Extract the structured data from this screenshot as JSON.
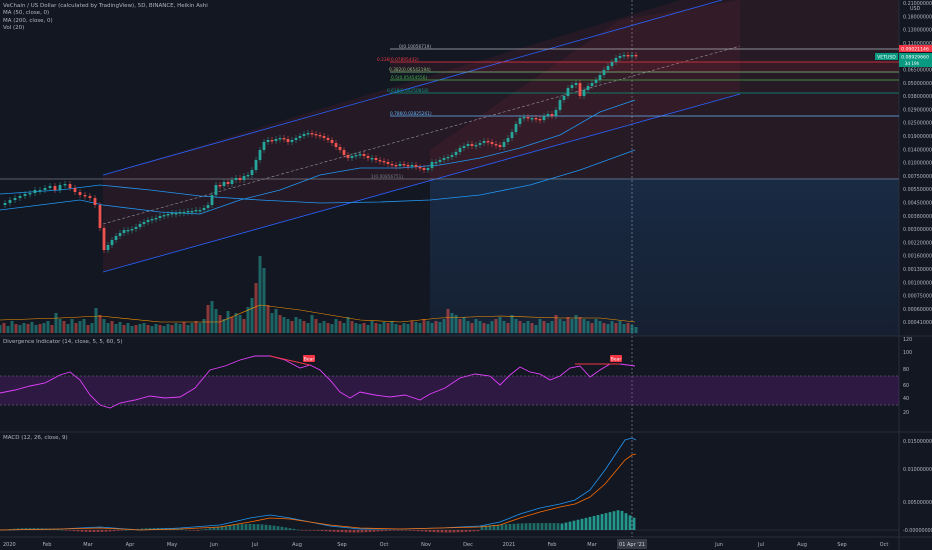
{
  "header": {
    "title": "VeChain / US Dollar (calculated by TradingView), 5D, BINANCE, Heikin Ashi",
    "indicators": [
      "MA (50, close, 0)",
      "MA (200, close, 0)",
      "Vol (20)"
    ]
  },
  "price_axis": {
    "currency": "USD",
    "labels": [
      "0.21000000",
      "0.18000000",
      "0.13000000",
      "0.11000000",
      "0.08500000",
      "0.06500000",
      "0.05000000",
      "0.03800000",
      "0.02900000",
      "0.02500000",
      "0.01900000",
      "0.01400000",
      "0.01000000",
      "0.00750000",
      "0.00550000",
      "0.00450000",
      "0.00380000",
      "0.00300000",
      "0.00220000",
      "0.00160000",
      "0.00130000",
      "0.00100000",
      "0.00075000",
      "0.00060000",
      "0.00041000"
    ],
    "tags": {
      "top_value": "0.09021146",
      "symbol": "VETUSD",
      "last_value": "0.08929660",
      "countdown": "3d 19h"
    }
  },
  "fib_levels": [
    {
      "label": "0(0.10056719)",
      "color": "#b2b5be"
    },
    {
      "label": "0.236(0.07895442)",
      "color": "#f23645"
    },
    {
      "label": "0.382(0.06542194)",
      "color": "#81c784"
    },
    {
      "label": "0.5(0.05454556)",
      "color": "#4caf50"
    },
    {
      "label": "0.618(0.04250818)",
      "color": "#089981"
    },
    {
      "label": "0.786(0.02825261)",
      "color": "#64b5f6"
    },
    {
      "label": "1(0.00856751)",
      "color": "#787b86"
    }
  ],
  "divergence": {
    "title": "Divergence Indicator (14, close, 5, 5, 60, 5)",
    "axis": [
      "120",
      "100",
      "80",
      "60",
      "40",
      "20"
    ],
    "badges": [
      "Bear",
      "Bear"
    ]
  },
  "macd": {
    "title": "MACD (12, 26, close, 9)",
    "axis": [
      "0.01500000",
      "0.01000000",
      "0.00500000",
      "-0.00000000"
    ]
  },
  "time_axis": {
    "labels": [
      "2020",
      "Feb",
      "Mar",
      "Apr",
      "May",
      "Jun",
      "Jul",
      "Aug",
      "Sep",
      "Oct",
      "Nov",
      "Dec",
      "2021",
      "Feb",
      "Mar",
      "Jun",
      "Jul",
      "Aug",
      "Sep",
      "Oct"
    ],
    "cursor_label": "01 Apr '21"
  },
  "colors": {
    "bg": "#131722",
    "up": "#26a69a",
    "down": "#ef5350",
    "channel": "#2962ff",
    "ma50": "#2196f3",
    "rsi": "#e040fb",
    "macd_line": "#2196f3",
    "signal_line": "#ff6d00"
  }
}
